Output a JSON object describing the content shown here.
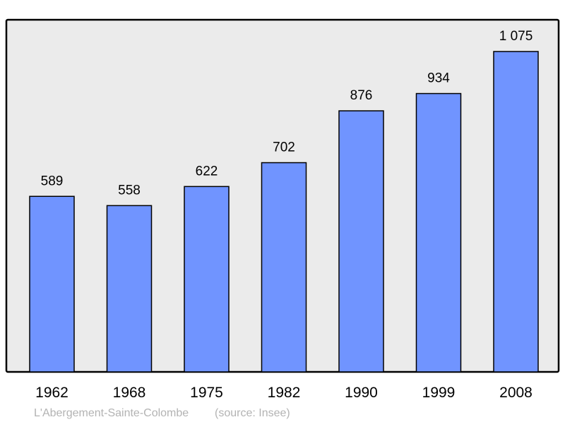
{
  "chart_data": {
    "type": "bar",
    "categories": [
      "1962",
      "1968",
      "1975",
      "1982",
      "1990",
      "1999",
      "2008"
    ],
    "values": [
      589,
      558,
      622,
      702,
      876,
      934,
      1075
    ],
    "value_labels": [
      "589",
      "558",
      "622",
      "702",
      "876",
      "934",
      "1 075"
    ],
    "ylim": [
      0,
      1075
    ],
    "grid": false,
    "bar_color": "#7094ff",
    "background_color": "#ebebeb",
    "footer": {
      "place": "L'Abergement-Sainte-Colombe",
      "source": "(source: Insee)"
    }
  }
}
